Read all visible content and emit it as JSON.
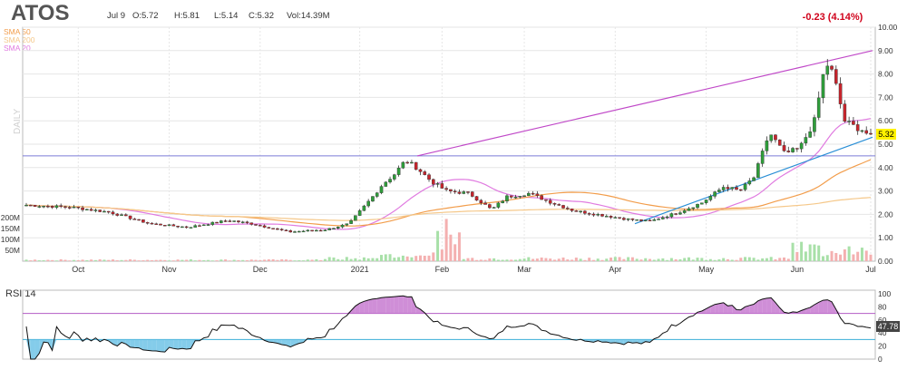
{
  "header": {
    "ticker": "ATOS",
    "date": "Jul 9",
    "open": "O:5.72",
    "high": "H:5.81",
    "low": "L:5.14",
    "close": "C:5.32",
    "volume": "Vol:14.39M",
    "change": "-0.23 (4.14%)",
    "change_color": "#d0021b"
  },
  "legend": [
    {
      "label": "SMA 50",
      "color": "#f29d4b"
    },
    {
      "label": "SMA 200",
      "color": "#f5c88a"
    },
    {
      "label": "SMA 20",
      "color": "#e07be0"
    }
  ],
  "timeframe_label": "DAILY",
  "price_tag": "5.32",
  "rsi_label": "RSI 14",
  "rsi_value": "47.78",
  "chart_data": [
    {
      "type": "candlestick",
      "title": "ATOS",
      "x_tick_labels": [
        "Oct",
        "Nov",
        "Dec",
        "2021",
        "Feb",
        "Mar",
        "Apr",
        "May",
        "Jun",
        "Jul"
      ],
      "y_tick_labels": [
        "0.00",
        "1.00",
        "2.00",
        "3.00",
        "4.00",
        "5.00",
        "6.00",
        "7.00",
        "8.00",
        "9.00",
        "10.00"
      ],
      "ylim": [
        0,
        10
      ],
      "volume_tick_labels": [
        "200M",
        "150M",
        "100M",
        "50M"
      ],
      "volume_ylim": [
        0,
        220
      ],
      "volume_unit": "M",
      "grid": true,
      "legend_position": "top-left",
      "reference_lines": [
        {
          "type": "horizontal",
          "value": 4.5,
          "color": "#7b7bd8"
        },
        {
          "type": "trendline",
          "from": [
            "Feb",
            4.5
          ],
          "to": [
            "Jul",
            9.0
          ],
          "color": "#c048c8"
        },
        {
          "type": "trendline",
          "from": [
            "Apr",
            1.6
          ],
          "to": [
            "Jul",
            5.3
          ],
          "color": "#2a8fd6"
        }
      ],
      "last_close": 5.32
    },
    {
      "type": "line",
      "title": "RSI 14",
      "y_tick_labels": [
        "0",
        "20",
        "40",
        "60",
        "80",
        "100"
      ],
      "ylim": [
        0,
        100
      ],
      "overbought": 70,
      "oversold": 30,
      "last_value": 47.78
    }
  ]
}
